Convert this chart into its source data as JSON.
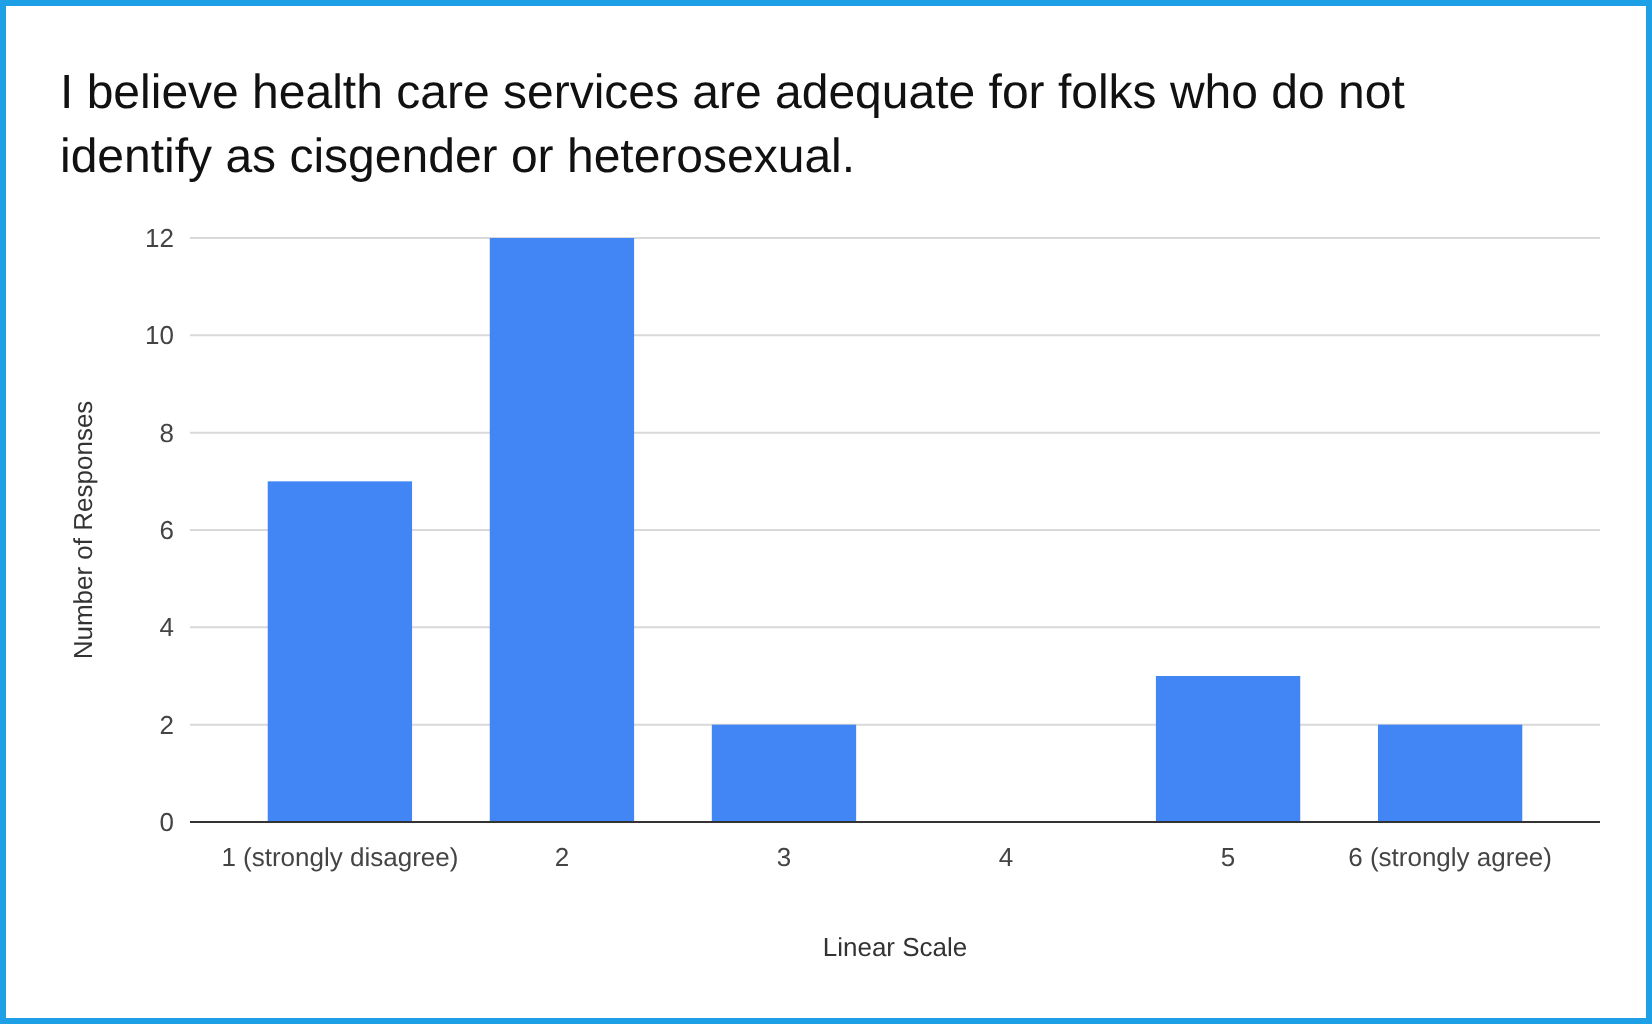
{
  "chart_data": {
    "type": "bar",
    "title": "I believe health care services are adequate for folks who do not identify as cisgender or heterosexual.",
    "xlabel": "Linear Scale",
    "ylabel": "Number of Responses",
    "categories": [
      "1 (strongly disagree)",
      "2",
      "3",
      "4",
      "5",
      "6 (strongly agree)"
    ],
    "values": [
      7,
      12,
      2,
      0,
      3,
      2
    ],
    "color": "#4285f4",
    "ylim": [
      0,
      12
    ],
    "yticks": [
      0,
      2,
      4,
      6,
      8,
      10,
      12
    ],
    "grid": "y"
  }
}
